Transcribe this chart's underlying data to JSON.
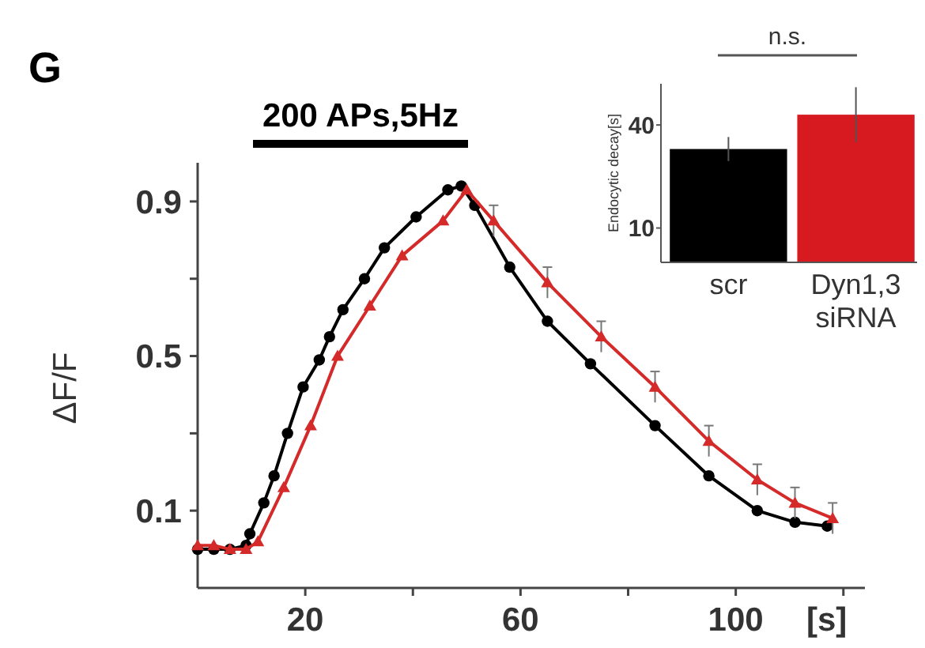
{
  "chart_data": [
    {
      "type": "line",
      "title": "G",
      "xlabel": "[s]",
      "ylabel": "ΔF/F",
      "xlim": [
        0,
        124
      ],
      "ylim": [
        -0.1,
        1.0
      ],
      "xticks": [
        20,
        {
          "value": 40,
          "label": null
        },
        60,
        {
          "value": 80,
          "label": null
        },
        100,
        {
          "value": 120,
          "label": null
        }
      ],
      "yticks": [
        0.1,
        {
          "value": 0.3,
          "label": null
        },
        0.5,
        {
          "value": 0.7,
          "label": null
        },
        0.9
      ],
      "annotations": [
        "200 APs,5Hz"
      ],
      "grid": false,
      "line_style": "solid",
      "series": [
        {
          "color": "#000000",
          "marker": "circle",
          "x": [
            0,
            3,
            6,
            9,
            9.7,
            12.3,
            14.2,
            16.7,
            19.6,
            22.6,
            24.5,
            27,
            31,
            34.7,
            40.6,
            46.5,
            49,
            51.5,
            58,
            65,
            73,
            85,
            95,
            104,
            111,
            117
          ],
          "values": [
            0.0,
            0.0,
            0.0,
            0.01,
            0.04,
            0.12,
            0.19,
            0.3,
            0.42,
            0.49,
            0.55,
            0.62,
            0.7,
            0.78,
            0.86,
            0.93,
            0.94,
            0.89,
            0.73,
            0.59,
            0.48,
            0.32,
            0.19,
            0.1,
            0.07,
            0.06
          ]
        },
        {
          "color": "#d42a2a",
          "marker": "triangle",
          "x": [
            0,
            3,
            6,
            9,
            11.2,
            16,
            21,
            26,
            32,
            38,
            45.6,
            50,
            55,
            65,
            75,
            85,
            95,
            104,
            111,
            118
          ],
          "values": [
            0.01,
            0.01,
            0.0,
            0.0,
            0.02,
            0.16,
            0.32,
            0.5,
            0.63,
            0.76,
            0.85,
            0.93,
            0.85,
            0.69,
            0.55,
            0.42,
            0.28,
            0.18,
            0.12,
            0.08
          ],
          "errors": [
            null,
            null,
            null,
            null,
            null,
            null,
            null,
            null,
            null,
            null,
            null,
            null,
            0.04,
            0.04,
            0.04,
            0.04,
            0.04,
            0.04,
            0.04,
            0.04
          ]
        }
      ]
    },
    {
      "type": "bar",
      "ylabel": "Endocytic decay[s]",
      "categories": [
        "scr",
        "Dyn1,3 siRNA"
      ],
      "values": [
        33,
        43
      ],
      "colors": [
        "#000000",
        "#d71920"
      ],
      "errors": [
        3.5,
        8
      ],
      "ylim": [
        0,
        52
      ],
      "yticks": [
        10,
        40
      ],
      "annotations": [
        "n.s."
      ]
    }
  ]
}
